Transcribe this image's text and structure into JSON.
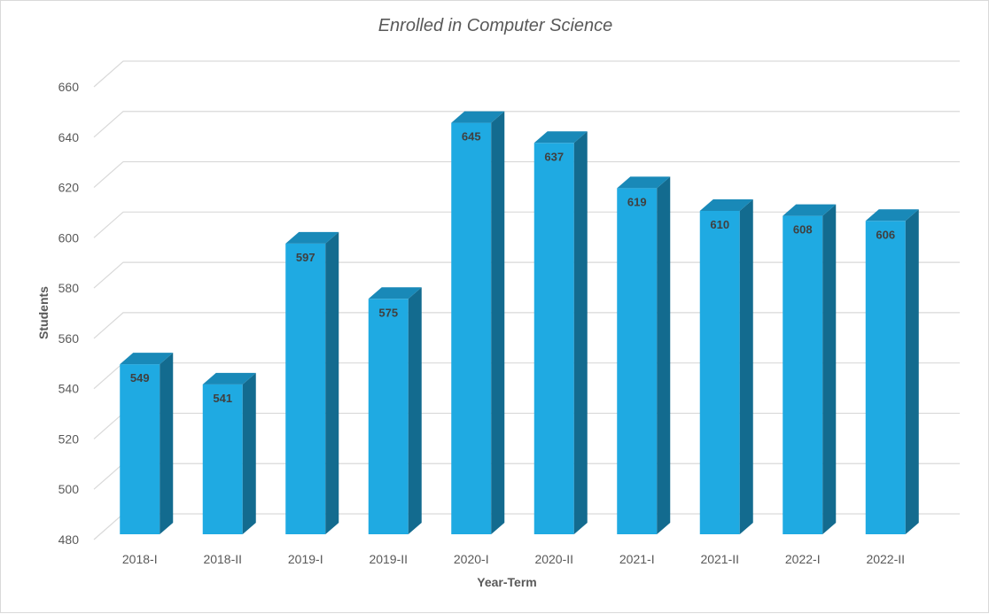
{
  "chart_data": {
    "type": "bar",
    "title": "Enrolled in Computer Science",
    "xlabel": "Year-Term",
    "ylabel": "Students",
    "categories": [
      "2018-I",
      "2018-II",
      "2019-I",
      "2019-II",
      "2020-I",
      "2020-II",
      "2021-I",
      "2021-II",
      "2022-I",
      "2022-II"
    ],
    "values": [
      549,
      541,
      597,
      575,
      645,
      637,
      619,
      610,
      608,
      606
    ],
    "ylim": [
      480,
      660
    ],
    "yticks": [
      480,
      500,
      520,
      540,
      560,
      580,
      600,
      620,
      640,
      660
    ],
    "grid": true,
    "style": "3d-column",
    "colors": {
      "front": "#1FAAE2",
      "side": "#136B8F",
      "top": "#1989B8",
      "grid": "#D9D9D9",
      "text": "#595959"
    }
  }
}
